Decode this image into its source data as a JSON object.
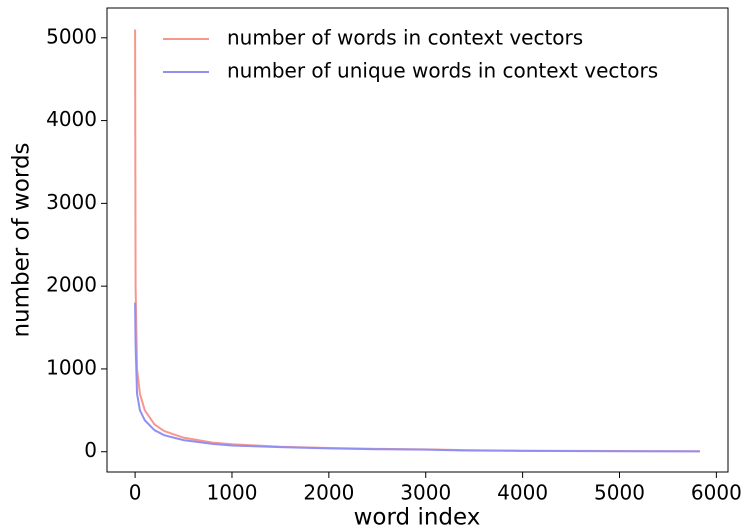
{
  "chart_data": {
    "type": "line",
    "xlabel": "word index",
    "ylabel": "number of words",
    "x": [
      0,
      5,
      20,
      50,
      100,
      200,
      300,
      500,
      800,
      1000,
      1500,
      2000,
      2500,
      3000,
      3400,
      4000,
      5000,
      5830
    ],
    "series": [
      {
        "name": "number of words in context vectors",
        "color": "#f8968d",
        "values": [
          5100,
          2000,
          1000,
          700,
          500,
          330,
          250,
          170,
          110,
          90,
          60,
          45,
          35,
          28,
          20,
          12,
          8,
          5
        ]
      },
      {
        "name": "number of unique words in context vectors",
        "color": "#9090f4",
        "values": [
          1800,
          1300,
          700,
          500,
          380,
          260,
          200,
          140,
          95,
          75,
          55,
          40,
          30,
          25,
          15,
          10,
          6,
          4
        ]
      }
    ],
    "xlim": [
      -290,
      6120
    ],
    "ylim": [
      -245,
      5360
    ],
    "xticks": [
      0,
      1000,
      2000,
      3000,
      4000,
      5000,
      6000
    ],
    "yticks": [
      0,
      1000,
      2000,
      3000,
      4000,
      5000
    ],
    "legend": "upper right",
    "grid": false
  }
}
